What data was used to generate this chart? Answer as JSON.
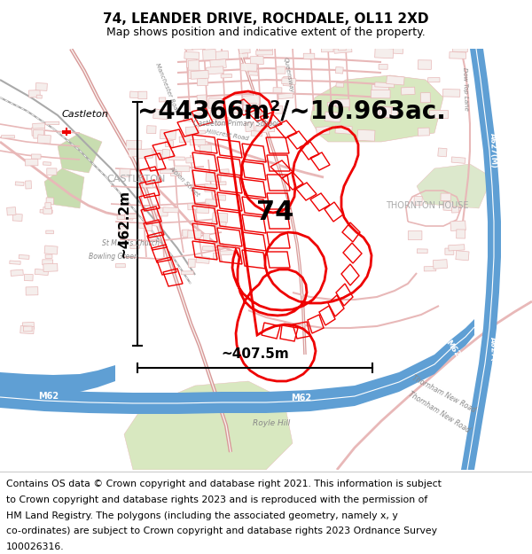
{
  "title_line1": "74, LEANDER DRIVE, ROCHDALE, OL11 2XD",
  "title_line2": "Map shows position and indicative extent of the property.",
  "area_text": "~44366m²/~10.963ac.",
  "height_label": "~462.2m",
  "width_label": "~407.5m",
  "property_label": "74",
  "footer_lines": [
    "Contains OS data © Crown copyright and database right 2021. This information is subject",
    "to Crown copyright and database rights 2023 and is reproduced with the permission of",
    "HM Land Registry. The polygons (including the associated geometry, namely x, y",
    "co-ordinates) are subject to Crown copyright and database rights 2023 Ordnance Survey",
    "100026316."
  ],
  "map_bg": "#f8f4f0",
  "title_bg": "#ffffff",
  "footer_bg": "#ffffff",
  "road_light": "#e8b8b8",
  "road_medium": "#d89898",
  "motorway_blue": "#5f9fd4",
  "motorway_white": "#ffffff",
  "property_red": "#ee0000",
  "green_area": "#d8e8c0",
  "green_area2": "#c8ddb0",
  "title_fontsize": 11,
  "subtitle_fontsize": 9,
  "area_fontsize": 20,
  "scalebar_fontsize": 11,
  "footer_fontsize": 7.8,
  "fig_width": 6.0,
  "fig_height": 6.25
}
